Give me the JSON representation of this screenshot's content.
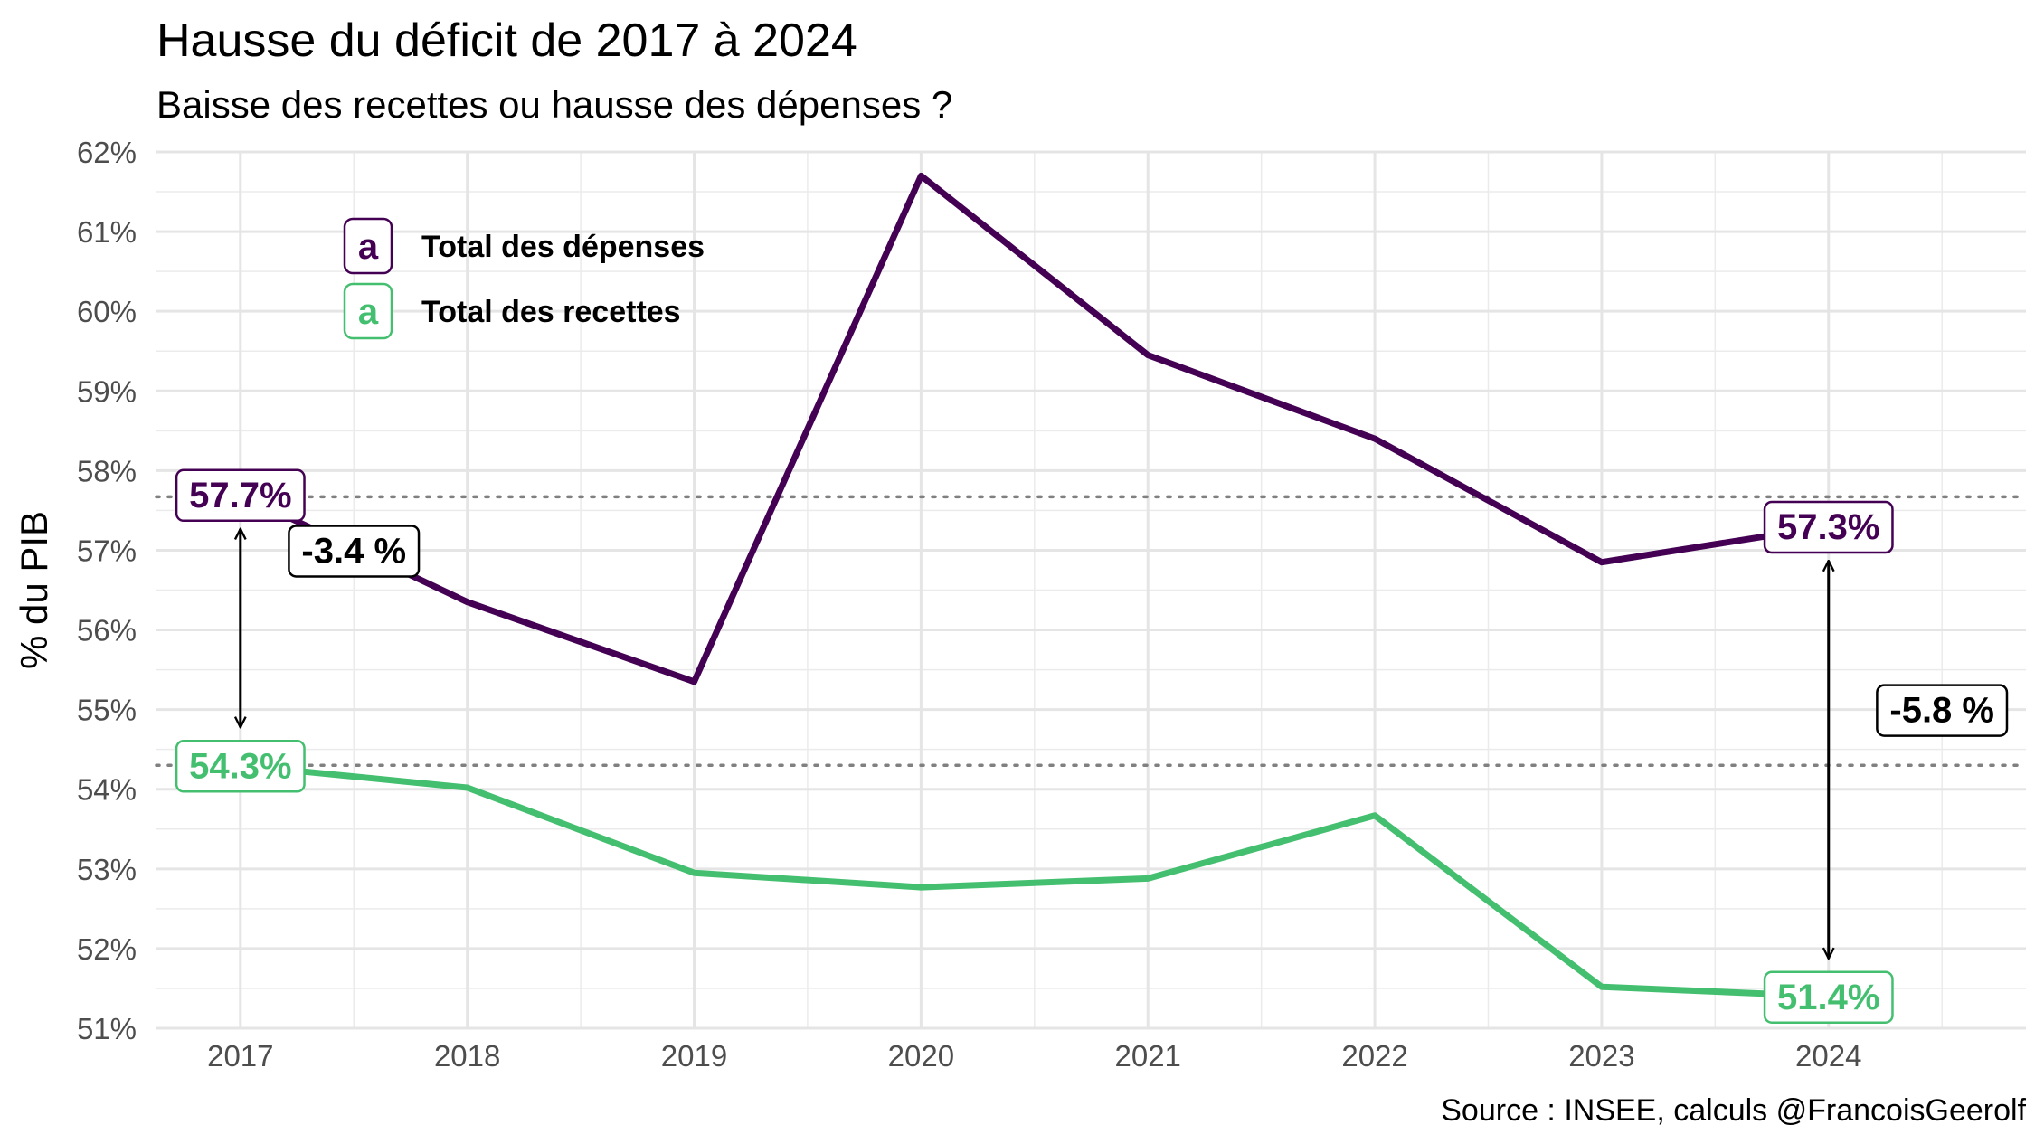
{
  "chart_data": {
    "type": "line",
    "title": "Hausse du déficit de 2017 à 2024",
    "subtitle": "Baisse des recettes ou hausse des dépenses ?",
    "xlabel": "",
    "ylabel": "% du PIB",
    "caption": "Source : INSEE, calculs @FrancoisGeerolf",
    "x": [
      2017,
      2018,
      2019,
      2020,
      2021,
      2022,
      2023,
      2024
    ],
    "xlim": [
      2016.63,
      2024.87
    ],
    "ylim": [
      51,
      62
    ],
    "y_ticks": [
      51,
      52,
      53,
      54,
      55,
      56,
      57,
      58,
      59,
      60,
      61,
      62
    ],
    "y_tick_labels": [
      "51%",
      "52%",
      "53%",
      "54%",
      "55%",
      "56%",
      "57%",
      "58%",
      "59%",
      "60%",
      "61%",
      "62%"
    ],
    "x_tick_labels": [
      "2017",
      "2018",
      "2019",
      "2020",
      "2021",
      "2022",
      "2023",
      "2024"
    ],
    "grid": true,
    "legend_position": "top-left",
    "series": [
      {
        "name": "Total des dépenses",
        "color": "#440154",
        "values": [
          57.7,
          56.35,
          55.35,
          61.7,
          59.45,
          58.4,
          56.85,
          57.3
        ]
      },
      {
        "name": "Total des recettes",
        "color": "#44bf70",
        "values": [
          54.3,
          54.02,
          52.95,
          52.77,
          52.88,
          53.67,
          51.52,
          51.4
        ]
      }
    ],
    "legend_key": "a",
    "reference_lines": [
      57.67,
      54.3
    ],
    "point_labels": [
      {
        "series": 0,
        "x": 2017,
        "y": 57.7,
        "text": "57.7%"
      },
      {
        "series": 1,
        "x": 2017,
        "y": 54.3,
        "text": "54.3%"
      },
      {
        "series": 0,
        "x": 2024,
        "y": 57.3,
        "text": "57.3%"
      },
      {
        "series": 1,
        "x": 2024,
        "y": 51.4,
        "text": "51.4%"
      }
    ],
    "differences": [
      {
        "x": 2017,
        "from": 57.7,
        "to": 54.3,
        "text": "-3.4 %",
        "label_x": 2017.5,
        "label_y": 57.0
      },
      {
        "x": 2024,
        "from": 57.3,
        "to": 51.4,
        "text": "-5.8 %",
        "label_x": 2024.5,
        "label_y": 55.0
      }
    ]
  }
}
